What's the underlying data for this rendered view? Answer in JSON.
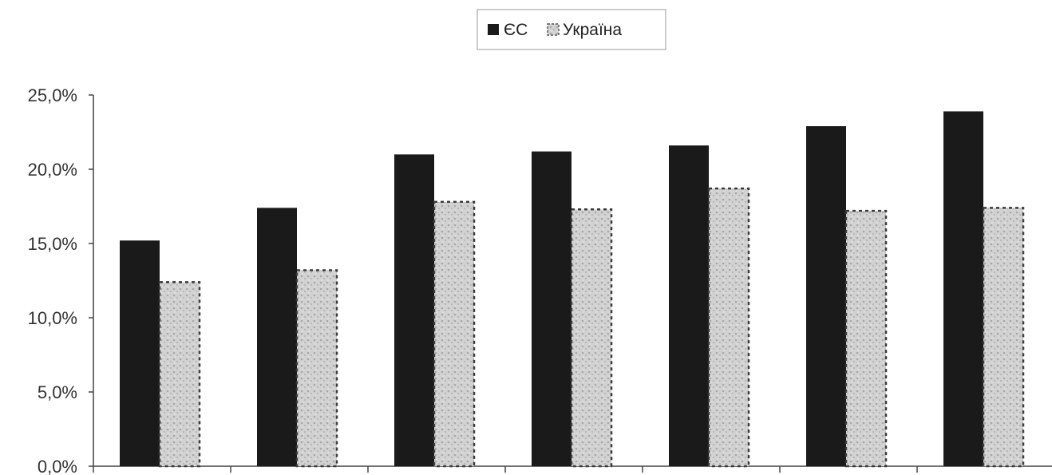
{
  "chart_data": {
    "type": "bar",
    "categories": [
      "",
      "",
      "",
      "",
      "",
      "",
      ""
    ],
    "series": [
      {
        "name": "ЄС",
        "values": [
          15.2,
          17.4,
          21.0,
          21.2,
          21.6,
          22.9,
          23.9
        ],
        "color": "#1a1a1a"
      },
      {
        "name": "Україна",
        "values": [
          12.4,
          13.2,
          17.8,
          17.3,
          18.7,
          17.2,
          17.4
        ],
        "color": "#c8c8c8"
      }
    ],
    "ylim": [
      0,
      25
    ],
    "yticks": [
      "0,0%",
      "5,0%",
      "10,0%",
      "15,0%",
      "20,0%",
      "25,0%"
    ],
    "grid": false,
    "legend_position": "top-center",
    "title": "",
    "xlabel": "",
    "ylabel": ""
  }
}
